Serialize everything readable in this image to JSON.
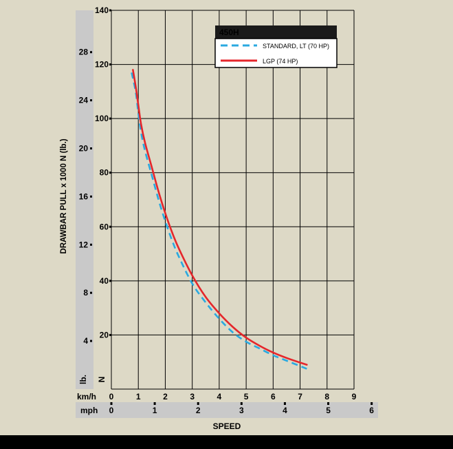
{
  "colors": {
    "background": "#ddd9c6",
    "axis_band": "#c9c9c9",
    "grid": "#000000",
    "footer": "#000000",
    "legend_header": "#1a1a1a",
    "legend_header_text": "#f2a900",
    "standard": "#2aa9e0",
    "lgp": "#e5262b"
  },
  "chart_data": {
    "type": "line",
    "title": "",
    "xlabel": "SPEED",
    "ylabel": "DRAWBAR PULL x 1000 N (lb.)",
    "grid": true,
    "legend_position": "top-right",
    "legend_title": "450H",
    "x_unit_primary": "km/h",
    "x_unit_secondary": "mph",
    "y_unit_primary": "N",
    "y_unit_secondary": "lb.",
    "xlim": [
      0,
      9
    ],
    "ylim": [
      0,
      140
    ],
    "x_ticks_kmh": [
      "0",
      "1",
      "2",
      "3",
      "4",
      "5",
      "6",
      "7",
      "8",
      "9"
    ],
    "x_ticks_mph": [
      "0",
      "1",
      "2",
      "3",
      "4",
      "5",
      "6"
    ],
    "y_ticks_n": [
      "20",
      "40",
      "60",
      "80",
      "100",
      "120",
      "140"
    ],
    "y_ticks_lb": [
      "4",
      "8",
      "12",
      "16",
      "20",
      "24",
      "28"
    ],
    "series": [
      {
        "name": "STANDARD, LT (70 HP)",
        "style": "dashed",
        "x": [
          0.75,
          0.9,
          1.0,
          1.1,
          1.25,
          1.5,
          1.75,
          2.0,
          2.25,
          2.5,
          3.0,
          3.5,
          4.0,
          4.5,
          5.0,
          5.5,
          6.0,
          6.5,
          7.0,
          7.25
        ],
        "y": [
          117,
          110,
          102,
          95,
          88,
          79,
          70,
          62,
          55,
          49,
          39,
          32,
          26,
          21,
          17.5,
          15,
          12.5,
          10.5,
          8.5,
          7.5
        ]
      },
      {
        "name": "LGP (74 HP)",
        "style": "solid",
        "x": [
          0.8,
          0.9,
          1.0,
          1.1,
          1.25,
          1.5,
          1.75,
          2.0,
          2.25,
          2.5,
          3.0,
          3.5,
          4.0,
          4.5,
          5.0,
          5.5,
          6.0,
          6.5,
          7.0,
          7.25
        ],
        "y": [
          118,
          112,
          105,
          98,
          91,
          82,
          73,
          65,
          58,
          52,
          42,
          34,
          28,
          23,
          19,
          16,
          13.5,
          11.5,
          9.8,
          9
        ]
      }
    ]
  }
}
